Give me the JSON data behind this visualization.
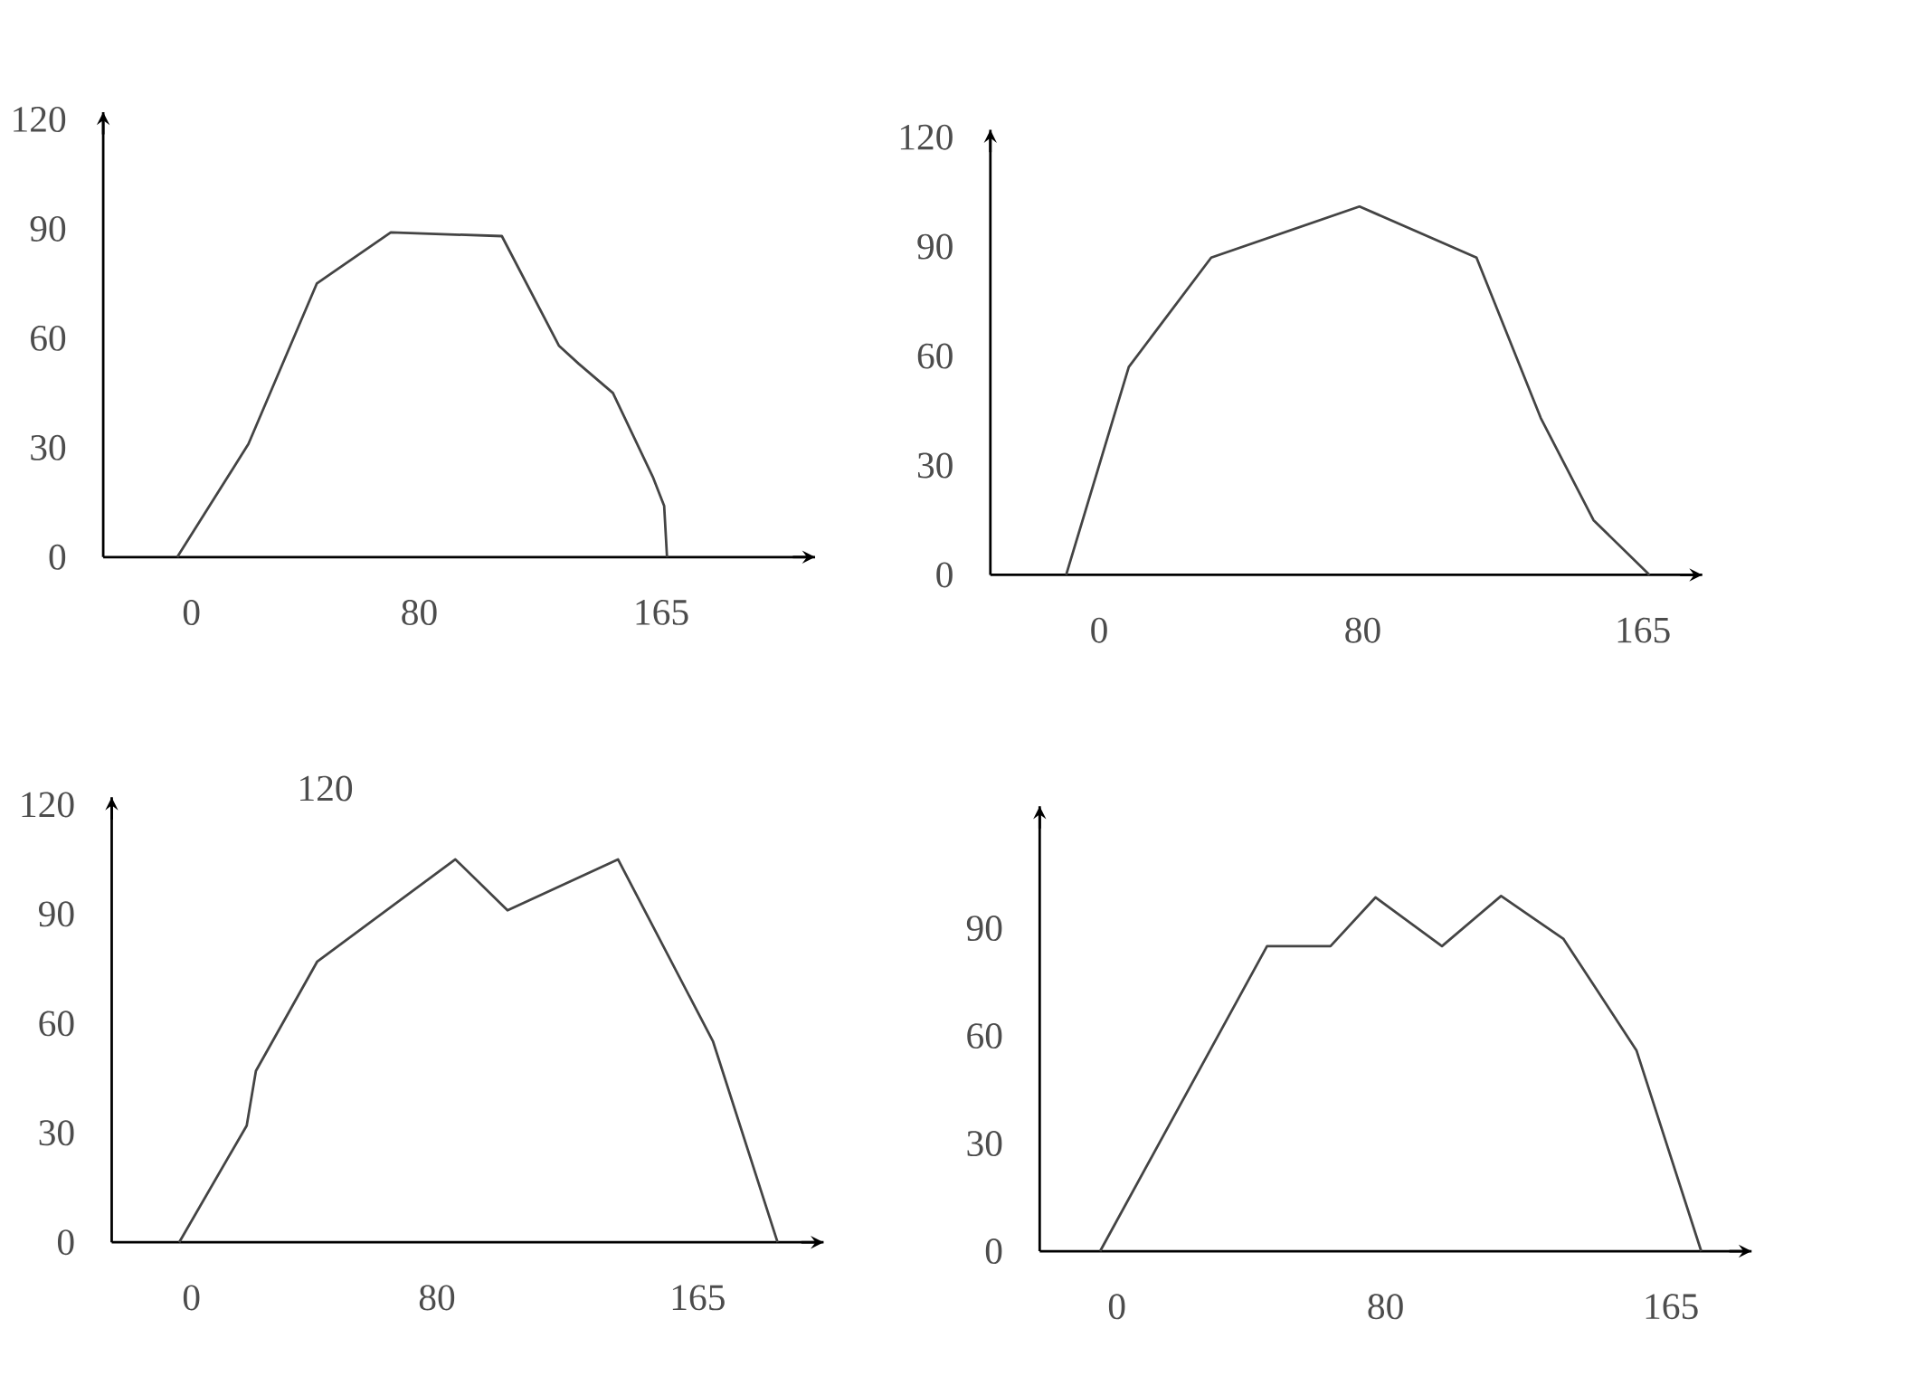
{
  "chart_data": [
    {
      "type": "line",
      "x": [
        -5,
        20,
        44,
        49.5,
        70,
        109,
        129,
        136,
        148,
        162,
        166,
        167
      ],
      "values": [
        0,
        31,
        75,
        78,
        89,
        88,
        58,
        53,
        45,
        22,
        14,
        0
      ],
      "color": "#444444",
      "xlim": [
        -31,
        219
      ],
      "ylim": [
        0,
        122
      ],
      "xticks": [
        0,
        80,
        165
      ],
      "yticks": [
        0,
        30,
        60,
        90,
        120
      ]
    },
    {
      "type": "line",
      "x": [
        -10,
        9,
        34,
        79,
        114.5,
        134,
        150,
        167
      ],
      "values": [
        0,
        57,
        87,
        101,
        87,
        43,
        15,
        0
      ],
      "color": "#444444",
      "xlim": [
        -33,
        183
      ],
      "ylim": [
        0,
        122
      ],
      "xticks": [
        0,
        80,
        165
      ],
      "yticks": [
        0,
        30,
        60,
        90,
        120
      ]
    },
    {
      "type": "line",
      "x": [
        -4,
        18,
        21,
        41,
        86,
        103,
        139,
        170,
        191
      ],
      "values": [
        0,
        32,
        47,
        77,
        105,
        91,
        105,
        55,
        0
      ],
      "color": "#444444",
      "xlim": [
        -26,
        206
      ],
      "ylim": [
        0,
        122
      ],
      "xticks": [
        0,
        80,
        165
      ],
      "yticks": [
        0,
        30,
        60,
        90,
        120
      ],
      "annotations": [
        "120"
      ]
    },
    {
      "type": "line",
      "x": [
        -5,
        44.7,
        63.6,
        77,
        96.8,
        114.4,
        133,
        154.7,
        174
      ],
      "values": [
        0,
        85,
        85,
        98.6,
        85,
        99,
        87,
        56,
        0
      ],
      "color": "#444444",
      "xlim": [
        -23,
        189
      ],
      "ylim": [
        0,
        124
      ],
      "xticks": [
        0,
        80,
        165
      ],
      "yticks": [
        0,
        30,
        60,
        90
      ]
    }
  ]
}
